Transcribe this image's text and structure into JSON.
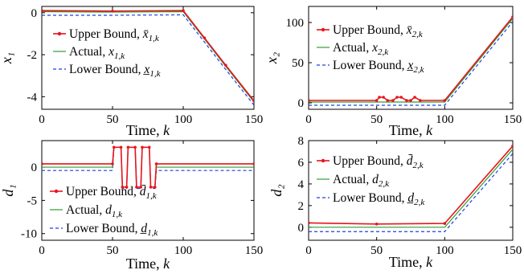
{
  "colors": {
    "upper": "#e8141e",
    "actual": "#2ea02e",
    "lower": "#1f3fe8",
    "axis": "#000000"
  },
  "chart_data": [
    {
      "type": "line",
      "ylabel": "x₁",
      "xlabel": "Time, k",
      "xlim": [
        0,
        150
      ],
      "ylim": [
        -4.6,
        0.3
      ],
      "xticks": [
        0,
        50,
        100,
        150
      ],
      "xtick_labels": [
        "0",
        "50",
        "100",
        "150"
      ],
      "yticks": [
        0,
        -2,
        -4
      ],
      "ytick_labels": [
        "0",
        "-2",
        "-4"
      ],
      "legend_position": "center-left",
      "series": [
        {
          "key": "upper",
          "name": "Upper Bound, x̄₁,ₖ",
          "math": "x̄",
          "sub": "1,k",
          "x": [
            0,
            50,
            100,
            115,
            130,
            150
          ],
          "y": [
            0.1,
            0.08,
            0.1,
            -1.2,
            -2.5,
            -4.2
          ]
        },
        {
          "key": "actual",
          "name": "Actual, x₁,ₖ",
          "math": "x",
          "sub": "1,k",
          "x": [
            0,
            50,
            100,
            115,
            130,
            150
          ],
          "y": [
            0.05,
            0.03,
            0.05,
            -1.25,
            -2.55,
            -4.25
          ]
        },
        {
          "key": "lower",
          "name": "Lower Bound, x̲₁,ₖ",
          "math": "x̲",
          "sub": "1,k",
          "x": [
            0,
            50,
            100,
            115,
            130,
            150
          ],
          "y": [
            -0.12,
            -0.12,
            -0.1,
            -1.4,
            -2.7,
            -4.4
          ]
        }
      ]
    },
    {
      "type": "line",
      "ylabel": "x₂",
      "xlabel": "Time, k",
      "xlim": [
        0,
        150
      ],
      "ylim": [
        -8,
        120
      ],
      "xticks": [
        0,
        50,
        100,
        150
      ],
      "xtick_labels": [
        "0",
        "50",
        "100",
        "150"
      ],
      "yticks": [
        0,
        50,
        100
      ],
      "ytick_labels": [
        "0",
        "50",
        "100"
      ],
      "legend_position": "top-left",
      "series": [
        {
          "key": "upper",
          "name": "Upper Bound, x̄₂,ₖ",
          "math": "x̄",
          "sub": "2,k",
          "x": [
            0,
            50,
            52,
            55,
            58,
            62,
            65,
            68,
            72,
            75,
            78,
            82,
            100,
            150
          ],
          "y": [
            3,
            3,
            7,
            7,
            3,
            3,
            7,
            7,
            3,
            3,
            7,
            3,
            3,
            107
          ]
        },
        {
          "key": "actual",
          "name": "Actual, x₂,ₖ",
          "math": "x",
          "sub": "2,k",
          "x": [
            0,
            100,
            150
          ],
          "y": [
            1,
            1,
            105
          ]
        },
        {
          "key": "lower",
          "name": "Lower Bound, x̲₂,ₖ",
          "math": "x̲",
          "sub": "2,k",
          "x": [
            0,
            100,
            150
          ],
          "y": [
            -3,
            -3,
            101
          ]
        }
      ]
    },
    {
      "type": "line",
      "ylabel": "d₁",
      "xlabel": "Time, k",
      "xlim": [
        0,
        150
      ],
      "ylim": [
        -11,
        4
      ],
      "xticks": [
        0,
        50,
        100,
        150
      ],
      "xtick_labels": [
        "0",
        "50",
        "100",
        "150"
      ],
      "yticks": [
        0,
        -5,
        -10
      ],
      "ytick_labels": [
        "0",
        "-5",
        "-10"
      ],
      "legend_position": "bottom-left",
      "series": [
        {
          "key": "upper",
          "name": "Upper Bound, d̄₁,ₖ",
          "math": "d̄",
          "sub": "1,k",
          "x": [
            0,
            50,
            51,
            56,
            57,
            60,
            61,
            66,
            67,
            70,
            71,
            76,
            77,
            80,
            81,
            150
          ],
          "y": [
            0.5,
            0.5,
            3,
            3,
            -3,
            -3,
            3,
            3,
            -3,
            -3,
            3,
            3,
            -3,
            -3,
            0.5,
            0.5
          ]
        },
        {
          "key": "actual",
          "name": "Actual, d₁,ₖ",
          "math": "d",
          "sub": "1,k",
          "x": [
            0,
            50,
            51,
            56,
            57,
            60,
            61,
            66,
            67,
            70,
            71,
            76,
            77,
            80,
            81,
            150
          ],
          "y": [
            0,
            0,
            3,
            3,
            -3,
            -3,
            3,
            3,
            -3,
            -3,
            3,
            3,
            -3,
            -3,
            0,
            0
          ]
        },
        {
          "key": "lower",
          "name": "Lower Bound, d̲₁,ₖ",
          "math": "d̲",
          "sub": "1,k",
          "x": [
            0,
            50,
            51,
            56,
            57,
            60,
            61,
            66,
            67,
            70,
            71,
            76,
            77,
            80,
            81,
            150
          ],
          "y": [
            -0.5,
            -0.5,
            3,
            3,
            -3.2,
            -3.2,
            3,
            3,
            -3.2,
            -3.2,
            3,
            3,
            -3.2,
            -3.2,
            -0.5,
            -0.5
          ]
        }
      ]
    },
    {
      "type": "line",
      "ylabel": "d₂",
      "xlabel": "Time, k",
      "xlim": [
        0,
        150
      ],
      "ylim": [
        -1.2,
        8
      ],
      "xticks": [
        0,
        50,
        100,
        150
      ],
      "xtick_labels": [
        "0",
        "50",
        "100",
        "150"
      ],
      "yticks": [
        0,
        2,
        4,
        6,
        8
      ],
      "ytick_labels": [
        "0",
        "2",
        "4",
        "6",
        "8"
      ],
      "legend_position": "top-left",
      "series": [
        {
          "key": "upper",
          "name": "Upper Bound, d̄₂,ₖ",
          "math": "d̄",
          "sub": "2,k",
          "x": [
            0,
            50,
            100,
            150
          ],
          "y": [
            0.4,
            0.3,
            0.35,
            7.5
          ]
        },
        {
          "key": "actual",
          "name": "Actual, d₂,ₖ",
          "math": "d",
          "sub": "2,k",
          "x": [
            0,
            100,
            150
          ],
          "y": [
            0,
            0,
            7.2
          ]
        },
        {
          "key": "lower",
          "name": "Lower Bound, d̲₂,ₖ",
          "math": "d̲",
          "sub": "2,k",
          "x": [
            0,
            100,
            150
          ],
          "y": [
            -0.4,
            -0.4,
            6.8
          ]
        }
      ]
    }
  ],
  "legend_labels": {
    "upper": "Upper Bound, ",
    "actual": "Actual, ",
    "lower": "Lower Bound, "
  }
}
